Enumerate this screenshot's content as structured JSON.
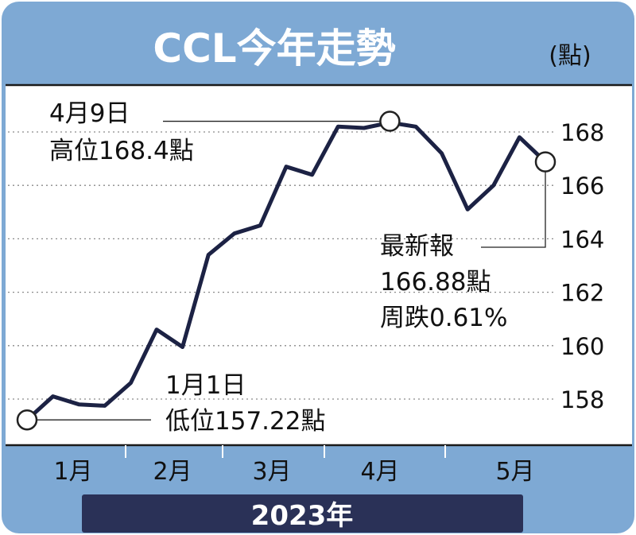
{
  "colors": {
    "frame": "#7EA9D4",
    "plot_bg": "#FFFFFF",
    "line": "#1C2244",
    "banner": "#2A3157",
    "title_text": "#FFFFFF",
    "text": "#111111"
  },
  "header": {
    "title": "CCL今年走勢",
    "unit": "(點)"
  },
  "footer": {
    "year": "2023年"
  },
  "annotations": {
    "high": {
      "line1": "4月9日",
      "line2": "高位168.4點"
    },
    "low": {
      "line1": "1月1日",
      "line2": "低位157.22點"
    },
    "latest": {
      "line1": "最新報",
      "line2": "166.88點",
      "line3": "周跌0.61%"
    }
  },
  "chart_data": {
    "type": "line",
    "title": "CCL今年走勢",
    "ylabel": "(點)",
    "xlabel": "2023年",
    "ylim": [
      156.5,
      169.5
    ],
    "yticks": [
      158,
      160,
      162,
      164,
      166,
      168
    ],
    "xticks": [
      "1月",
      "2月",
      "3月",
      "4月",
      "5月"
    ],
    "grid": true,
    "series": [
      {
        "values": [
          157.22,
          158.1,
          157.8,
          157.75,
          158.6,
          160.6,
          159.95,
          163.4,
          164.2,
          164.5,
          166.7,
          166.4,
          168.2,
          168.15,
          168.35,
          168.2,
          167.2,
          165.1,
          166.0,
          167.8,
          166.88
        ]
      }
    ],
    "highlights": [
      {
        "index": 0,
        "value": 157.22
      },
      {
        "index": 14,
        "value": 168.4
      },
      {
        "index": 20,
        "value": 166.88
      }
    ]
  }
}
